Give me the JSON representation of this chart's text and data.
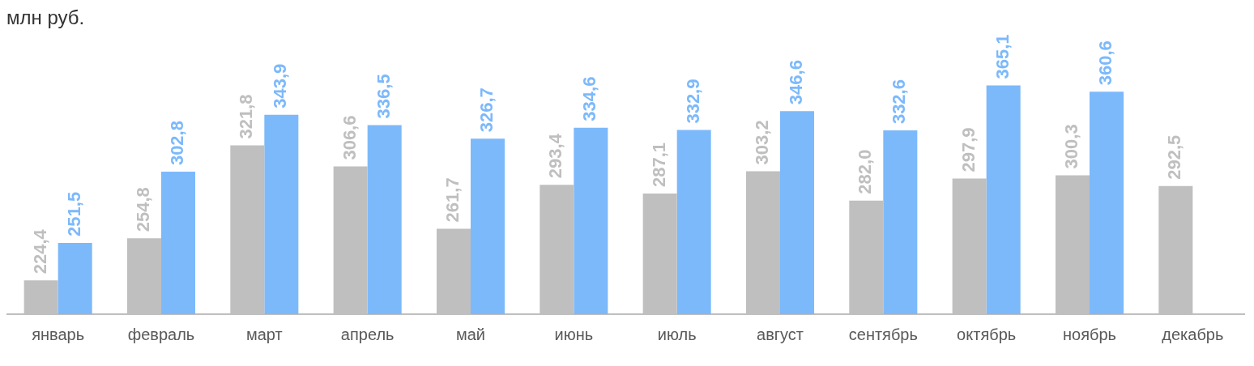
{
  "chart_data": {
    "type": "bar",
    "title": "млн руб.",
    "categories": [
      "январь",
      "февраль",
      "март",
      "апрель",
      "май",
      "июнь",
      "июль",
      "август",
      "сентябрь",
      "октябрь",
      "ноябрь",
      "декабрь"
    ],
    "series": [
      {
        "color": "#bfbfbf",
        "values": [
          224.4,
          254.8,
          321.8,
          306.6,
          261.7,
          293.4,
          287.1,
          303.2,
          282.0,
          297.9,
          300.3,
          292.5
        ],
        "value_labels": [
          "224,4",
          "254,8",
          "321,8",
          "306,6",
          "261,7",
          "293,4",
          "287,1",
          "303,2",
          "282,0",
          "297,9",
          "300,3",
          "292,5"
        ]
      },
      {
        "color": "#7cb9fb",
        "values": [
          251.5,
          302.8,
          343.9,
          336.5,
          326.7,
          334.6,
          332.9,
          346.6,
          332.6,
          365.1,
          360.6,
          null
        ],
        "value_labels": [
          "251,5",
          "302,8",
          "343,9",
          "336,5",
          "326,7",
          "334,6",
          "332,9",
          "346,6",
          "332,6",
          "365,1",
          "360,6",
          null
        ]
      }
    ],
    "tick_labels": "x",
    "grid": false,
    "legend": false
  }
}
